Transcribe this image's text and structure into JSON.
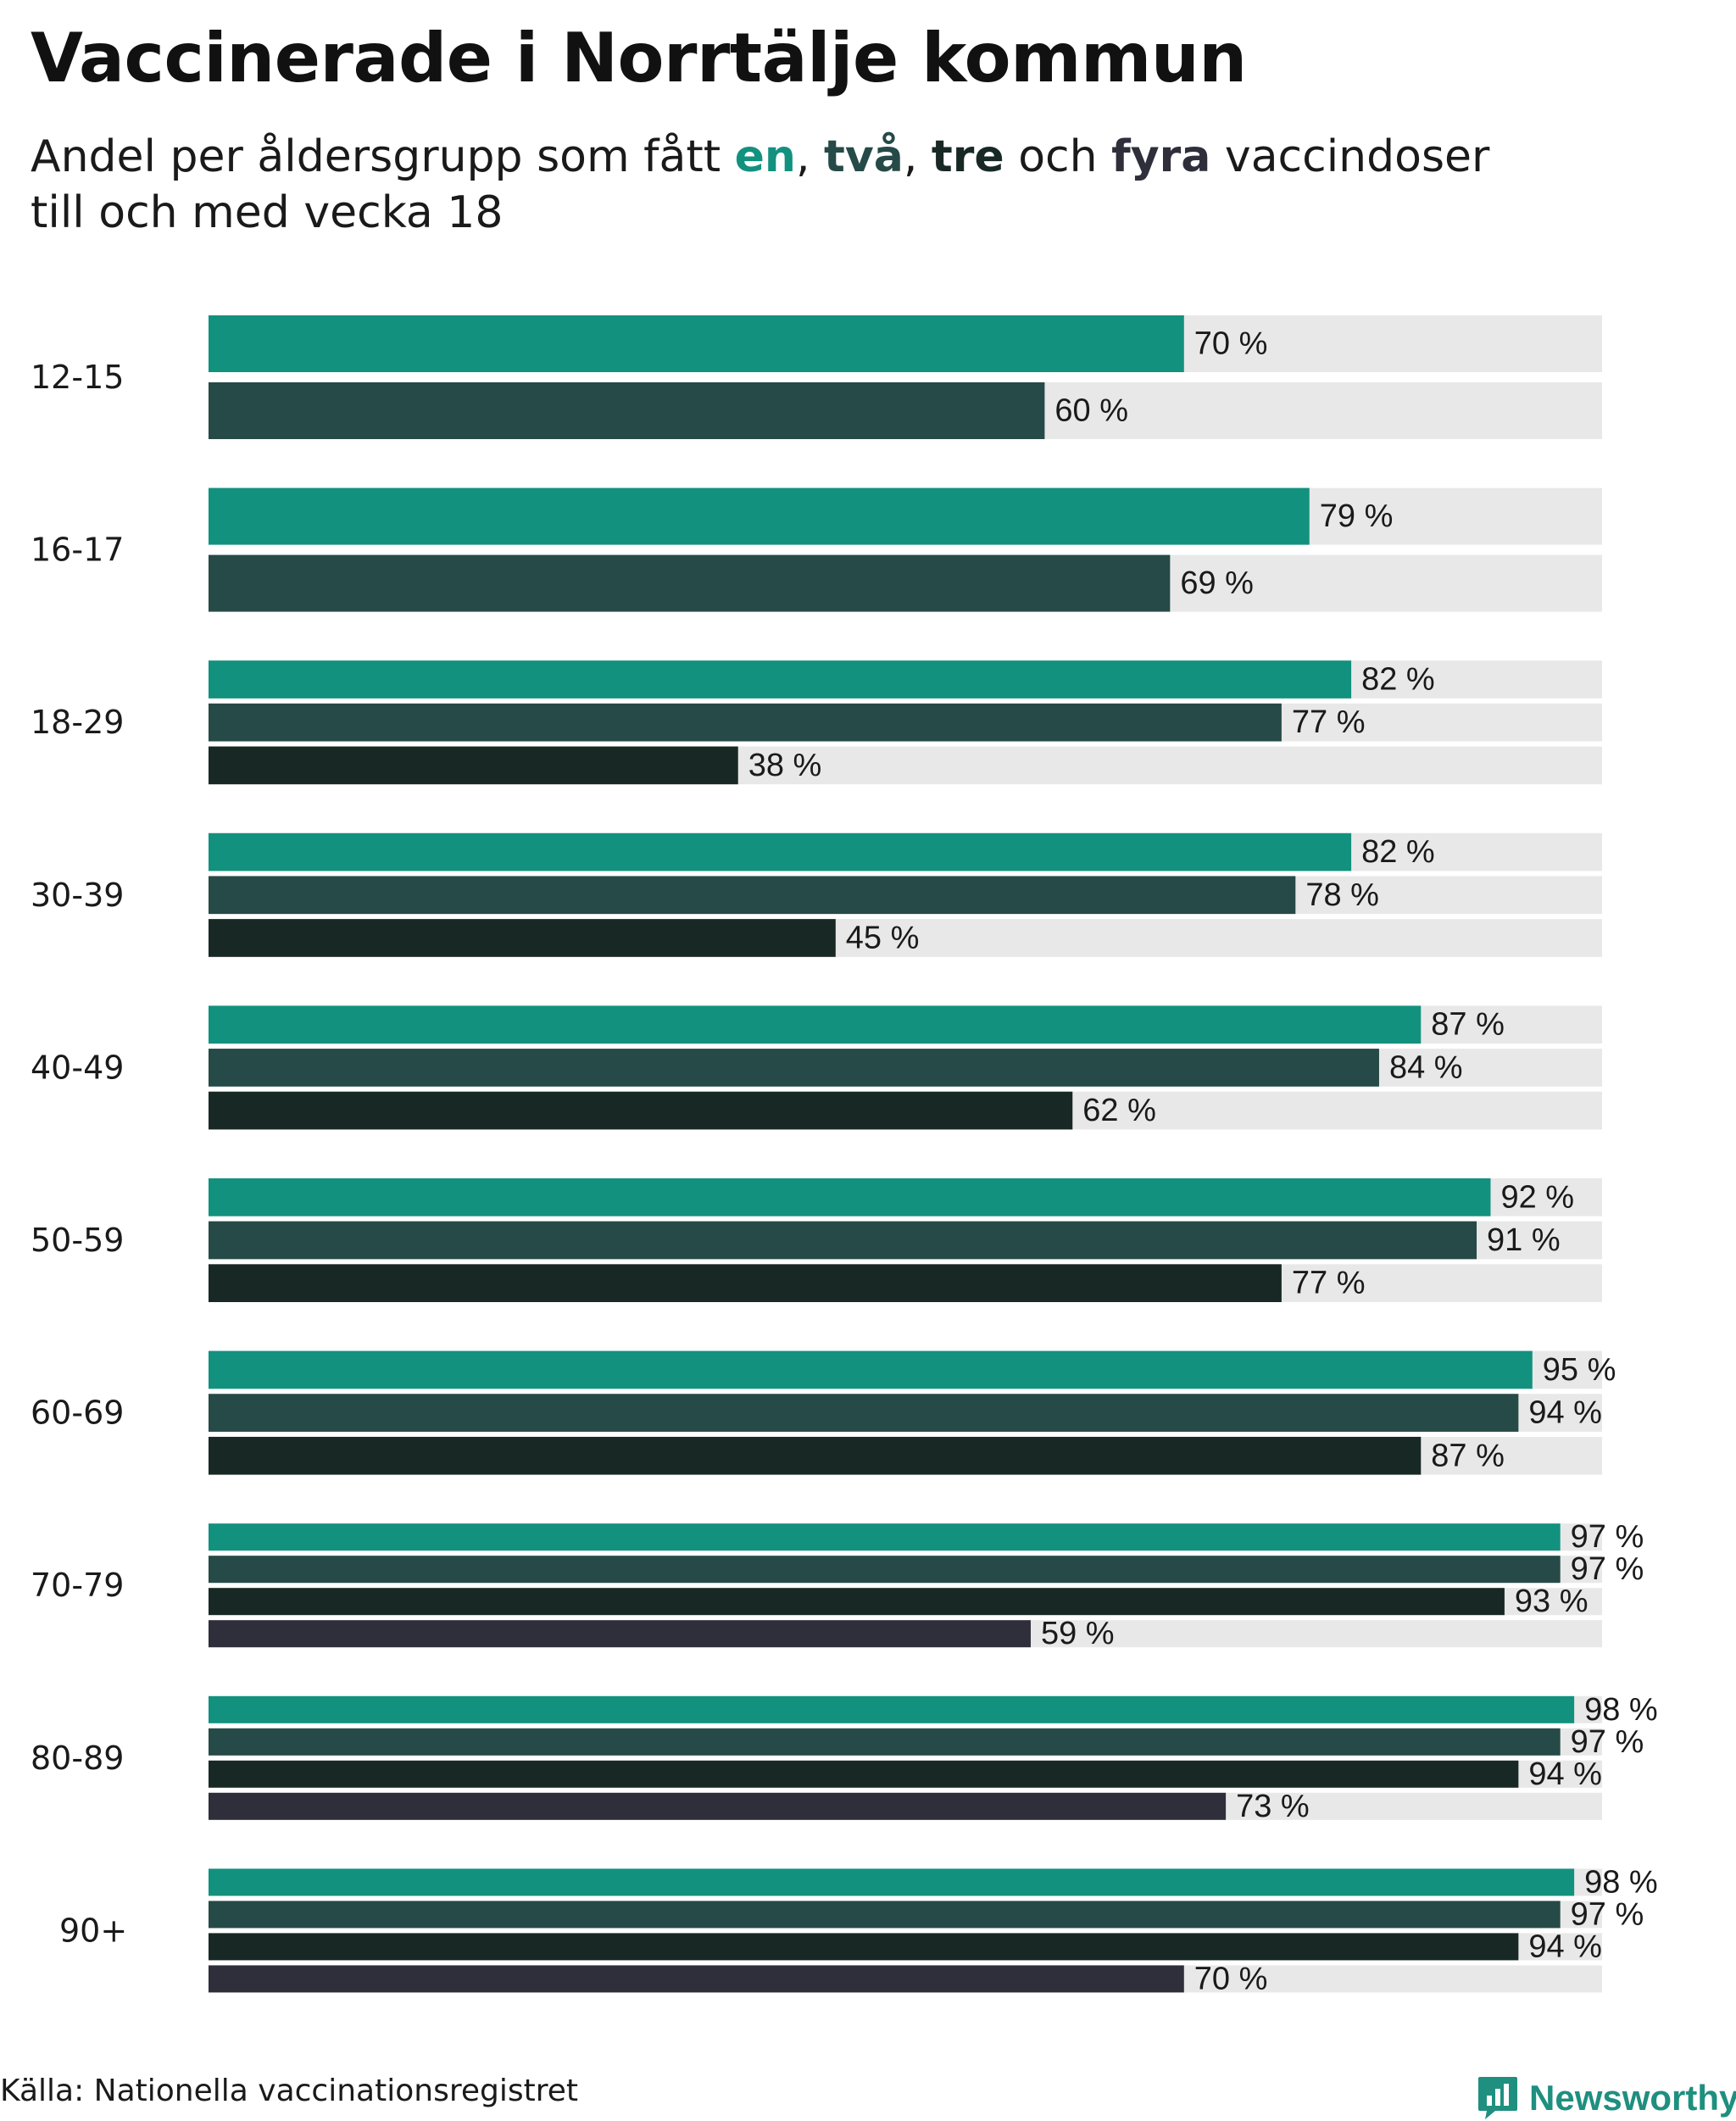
{
  "title": "Vaccinerade i Norrtälje kommun",
  "subtitle": {
    "prefix": "Andel per åldersgrupp som fått ",
    "en": "en",
    "comma1": ", ",
    "tva": "två",
    "comma2": ", ",
    "tre": "tre",
    "och": " och ",
    "fyra": "fyra",
    "suffix": " vaccindoser",
    "line2": "till och med vecka 18"
  },
  "colors": {
    "en": "#13917f",
    "tva": "#264a47",
    "tre": "#182825",
    "fyra": "#2f2e3b",
    "track": "#e8e8e8"
  },
  "chart_data": {
    "type": "bar",
    "orientation": "horizontal",
    "title": "Vaccinerade i Norrtälje kommun",
    "unit": "%",
    "xlim": [
      0,
      100
    ],
    "grid": false,
    "categories": [
      "12-15",
      "16-17",
      "18-29",
      "30-39",
      "40-49",
      "50-59",
      "60-69",
      "70-79",
      "80-89",
      "90+"
    ],
    "series": [
      {
        "name": "en",
        "values": [
          70,
          79,
          82,
          82,
          87,
          92,
          95,
          97,
          98,
          98
        ]
      },
      {
        "name": "två",
        "values": [
          60,
          69,
          77,
          78,
          84,
          91,
          94,
          97,
          97,
          97
        ]
      },
      {
        "name": "tre",
        "values": [
          null,
          null,
          38,
          45,
          62,
          77,
          87,
          93,
          94,
          94
        ]
      },
      {
        "name": "fyra",
        "values": [
          null,
          null,
          null,
          null,
          null,
          null,
          null,
          59,
          73,
          70
        ]
      }
    ]
  },
  "footer": {
    "source": "Källa: Nationella vaccinationsregistret",
    "brand": "Newsworthy"
  }
}
